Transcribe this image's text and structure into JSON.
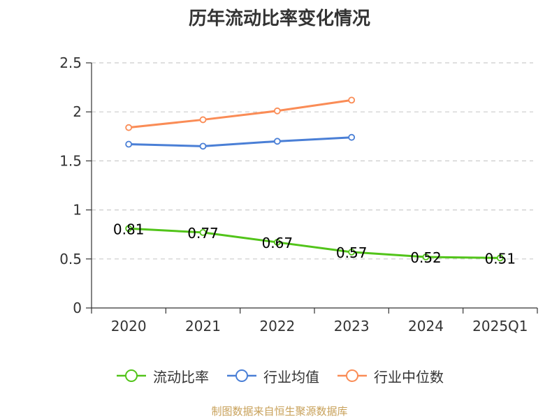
{
  "chart_data": {
    "type": "line",
    "title": "历年流动比率变化情况",
    "categories": [
      "2020",
      "2021",
      "2022",
      "2023",
      "2024",
      "2025Q1"
    ],
    "ylim": [
      0,
      2.5
    ],
    "yticks": [
      0,
      0.5,
      1,
      1.5,
      2,
      2.5
    ],
    "ytick_labels": [
      "0",
      "0.5",
      "1",
      "1.5",
      "2",
      "2.5"
    ],
    "grid": true,
    "legend": "bottom",
    "series": [
      {
        "name": "流动比率",
        "color": "#52c41a",
        "values": [
          0.81,
          0.77,
          0.67,
          0.57,
          0.52,
          0.51
        ],
        "labels": [
          "0.81",
          "0.77",
          "0.67",
          "0.57",
          "0.52",
          "0.51"
        ],
        "show_labels": true
      },
      {
        "name": "行业均值",
        "color": "#4a7fd6",
        "values": [
          1.67,
          1.65,
          1.7,
          1.74,
          null,
          null
        ],
        "labels": [],
        "show_labels": false
      },
      {
        "name": "行业中位数",
        "color": "#fa8c56",
        "values": [
          1.84,
          1.92,
          2.01,
          2.12,
          null,
          null
        ],
        "labels": [],
        "show_labels": false
      }
    ]
  },
  "footer": {
    "source": "制图数据来自恒生聚源数据库",
    "source_color": "#c8a15a"
  }
}
